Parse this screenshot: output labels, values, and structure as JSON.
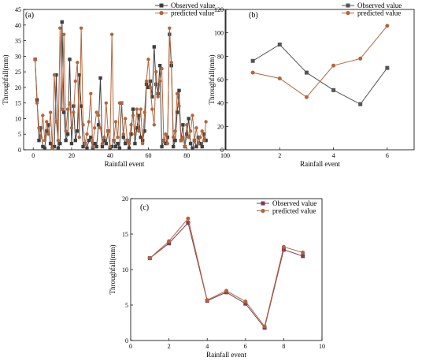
{
  "chart_data": [
    {
      "type": "line",
      "panel_label": "(a)",
      "xlabel": "Rainfall event",
      "ylabel": "Throughfall(mm)",
      "xlim": [
        -5,
        100
      ],
      "ylim": [
        0,
        45
      ],
      "x_ticks": [
        0,
        20,
        40,
        60,
        80,
        100
      ],
      "y_ticks": [
        0,
        5,
        10,
        15,
        20,
        25,
        30,
        35,
        40,
        45
      ],
      "legend_position": "top-right",
      "x": [
        1,
        2,
        3,
        4,
        5,
        6,
        7,
        8,
        9,
        10,
        11,
        12,
        13,
        14,
        15,
        16,
        17,
        18,
        19,
        20,
        21,
        22,
        23,
        24,
        25,
        26,
        27,
        28,
        29,
        30,
        31,
        32,
        33,
        34,
        35,
        36,
        37,
        38,
        39,
        40,
        41,
        42,
        43,
        44,
        45,
        46,
        47,
        48,
        49,
        50,
        51,
        52,
        53,
        54,
        55,
        56,
        57,
        58,
        59,
        60,
        61,
        62,
        63,
        64,
        65,
        66,
        67,
        68,
        69,
        70,
        71,
        72,
        73,
        74,
        75,
        76,
        77,
        78,
        79,
        80,
        81,
        82,
        83,
        84,
        85,
        86,
        87,
        88,
        89,
        90
      ],
      "series": [
        {
          "name": "Observed value",
          "color": "#3f3f3f",
          "marker": "square",
          "values": [
            29,
            16,
            3,
            7,
            1,
            0.5,
            6,
            8,
            2,
            0.5,
            1,
            24,
            0.5,
            2,
            41,
            12,
            3,
            5,
            29,
            2,
            14,
            3,
            6,
            24,
            14,
            1,
            2,
            0.5,
            3,
            4,
            0.5,
            2,
            1,
            8,
            23,
            1,
            3,
            2,
            6,
            0.5,
            1,
            3,
            1,
            2,
            0.5,
            15,
            4,
            2,
            3,
            0.5,
            5,
            13,
            2,
            7,
            11,
            4,
            3,
            6,
            21,
            20,
            22,
            17,
            33,
            21,
            18,
            27,
            1,
            3,
            2,
            4,
            37,
            27,
            1,
            3,
            12,
            19,
            3,
            8,
            1,
            5,
            10,
            2,
            0.5,
            3,
            1,
            4,
            2,
            1,
            5,
            3
          ]
        },
        {
          "name": "predicted value",
          "color": "#b5653a",
          "marker": "circle",
          "values": [
            29,
            15,
            7,
            4,
            11,
            3,
            9,
            5,
            12,
            0.5,
            24,
            9,
            3,
            39,
            13,
            37,
            6,
            13,
            15,
            7,
            12,
            22,
            28,
            4,
            39,
            8,
            2,
            5,
            9,
            18,
            1,
            7,
            12,
            11,
            7,
            2,
            4,
            15,
            6,
            1,
            37,
            3,
            9,
            4,
            15,
            15,
            5,
            10,
            3,
            2,
            8,
            11,
            5,
            13,
            6,
            13,
            2,
            12,
            22,
            29,
            20,
            13,
            8,
            25,
            17,
            22,
            26,
            3,
            5,
            2,
            39,
            28,
            4,
            6,
            18,
            14,
            3,
            4,
            1,
            8,
            4,
            6,
            11,
            3,
            7,
            2,
            4,
            6,
            3,
            9
          ]
        }
      ]
    },
    {
      "type": "line",
      "panel_label": "(b)",
      "xlabel": "Rainfall event",
      "ylabel": "Throughfall(mm)",
      "xlim": [
        0,
        7
      ],
      "ylim": [
        0,
        120
      ],
      "x_ticks": [
        2,
        4,
        6
      ],
      "y_ticks": [
        0,
        20,
        40,
        60,
        80,
        100,
        120
      ],
      "legend_position": "top-right",
      "x": [
        1,
        2,
        3,
        4,
        5,
        6
      ],
      "series": [
        {
          "name": "Observed value",
          "color": "#555555",
          "marker": "square",
          "values": [
            76,
            90,
            66,
            51,
            39,
            70
          ]
        },
        {
          "name": "predicted value",
          "color": "#b5653a",
          "marker": "circle",
          "values": [
            66,
            61,
            45,
            72,
            78,
            106
          ]
        }
      ]
    },
    {
      "type": "line",
      "panel_label": "(c)",
      "xlabel": "Rainfall event",
      "ylabel": "Throughfall(mm)",
      "xlim": [
        0,
        10
      ],
      "ylim": [
        0,
        20
      ],
      "x_ticks": [
        0,
        2,
        4,
        6,
        8,
        10
      ],
      "y_ticks": [
        0,
        5,
        10,
        15,
        20
      ],
      "legend_position": "top-right",
      "x": [
        1,
        2,
        3,
        4,
        5,
        6,
        7,
        8,
        9
      ],
      "series": [
        {
          "name": "Observed value",
          "color": "#7a3b5c",
          "marker": "square",
          "values": [
            11.6,
            13.7,
            16.6,
            5.6,
            6.8,
            5.2,
            1.8,
            12.8,
            11.9
          ]
        },
        {
          "name": "predicted value",
          "color": "#b5653a",
          "marker": "circle",
          "values": [
            11.6,
            14.0,
            17.2,
            5.7,
            7.0,
            5.5,
            2.0,
            13.2,
            12.4
          ]
        }
      ]
    }
  ]
}
